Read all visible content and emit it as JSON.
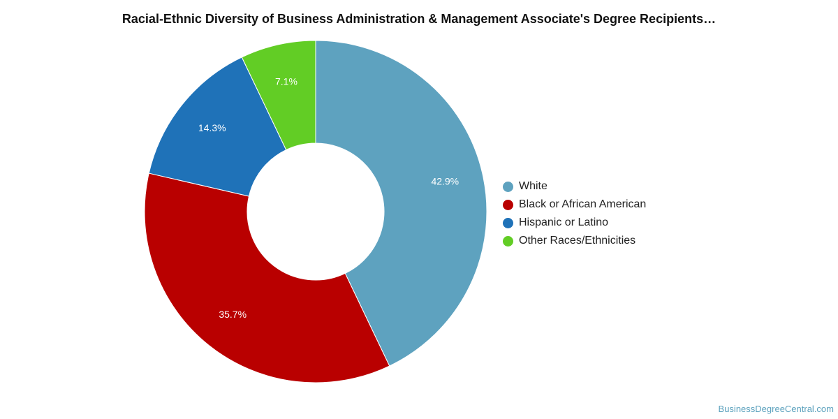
{
  "chart_data": {
    "type": "pie",
    "title": "Racial-Ethnic Diversity of Business Administration & Management Associate's Degree Recipients…",
    "categories": [
      "White",
      "Black or African American",
      "Hispanic or Latino",
      "Other Races/Ethnicities"
    ],
    "values": [
      42.9,
      35.7,
      14.3,
      7.1
    ],
    "data_labels": [
      "42.9%",
      "35.7%",
      "14.3%",
      "7.1%"
    ],
    "colors": [
      "#5ea2bf",
      "#b90000",
      "#1f72b8",
      "#62cd25"
    ],
    "donut": true,
    "legend_position": "right"
  },
  "source_credit": "BusinessDegreeCentral.com"
}
